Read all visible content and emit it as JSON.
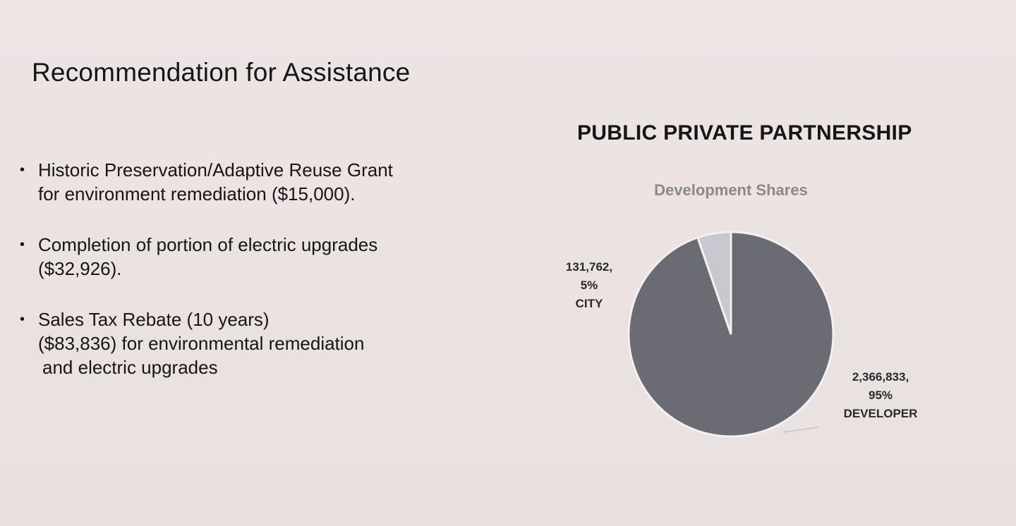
{
  "slide": {
    "title": "Recommendation for Assistance",
    "bullets": [
      {
        "lines": [
          "Historic Preservation/Adaptive Reuse Grant",
          "for environment remediation ($15,000)."
        ]
      },
      {
        "lines": [
          "Completion of portion of electric upgrades",
          "($32,926)."
        ]
      },
      {
        "lines": [
          "Sales Tax Rebate (10 years)",
          "($83,836) for environmental remediation",
          "and electric upgrades"
        ]
      }
    ],
    "chart_heading": "PUBLIC PRIVATE PARTNERSHIP"
  },
  "chart_data": {
    "type": "pie",
    "title": "Development Shares",
    "slices": [
      {
        "label": "CITY",
        "value": 131762,
        "value_text": "131,762,",
        "percent": 5,
        "percent_text": "5%",
        "color": "#c9c8d0"
      },
      {
        "label": "DEVELOPER",
        "value": 2366833,
        "value_text": "2,366,833,",
        "percent": 95,
        "percent_text": "95%",
        "color": "#6b6b74"
      }
    ],
    "legend": false
  }
}
